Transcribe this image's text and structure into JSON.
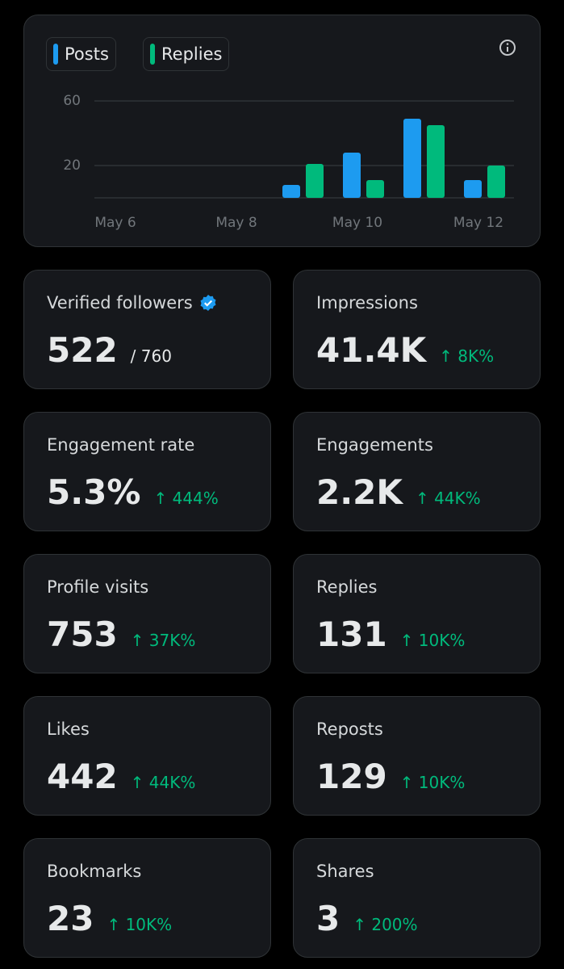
{
  "chart_data": {
    "type": "bar",
    "categories": [
      "May 6",
      null,
      "May 8",
      null,
      "May 10",
      null,
      "May 12"
    ],
    "series": [
      {
        "name": "Posts",
        "color": "#1d9bf0",
        "values": [
          0,
          0,
          0,
          8,
          28,
          49,
          11
        ]
      },
      {
        "name": "Replies",
        "color": "#00ba7c",
        "values": [
          0,
          0,
          0,
          21,
          11,
          45,
          20
        ]
      }
    ],
    "ylim": [
      0,
      60
    ],
    "yticks": [
      20,
      60
    ],
    "grid": true
  },
  "cards": [
    {
      "label": "Verified followers",
      "value": "522",
      "total": "/ 760"
    },
    {
      "label": "Impressions",
      "value": "41.4K",
      "change": "↑ 8K%"
    },
    {
      "label": "Engagement rate",
      "value": "5.3%",
      "change": "↑ 444%"
    },
    {
      "label": "Engagements",
      "value": "2.2K",
      "change": "↑ 44K%"
    },
    {
      "label": "Profile visits",
      "value": "753",
      "change": "↑ 37K%"
    },
    {
      "label": "Replies",
      "value": "131",
      "change": "↑ 10K%"
    },
    {
      "label": "Likes",
      "value": "442",
      "change": "↑ 44K%"
    },
    {
      "label": "Reposts",
      "value": "129",
      "change": "↑ 10K%"
    },
    {
      "label": "Bookmarks",
      "value": "23",
      "change": "↑ 10K%"
    },
    {
      "label": "Shares",
      "value": "3",
      "change": "↑ 200%"
    }
  ]
}
